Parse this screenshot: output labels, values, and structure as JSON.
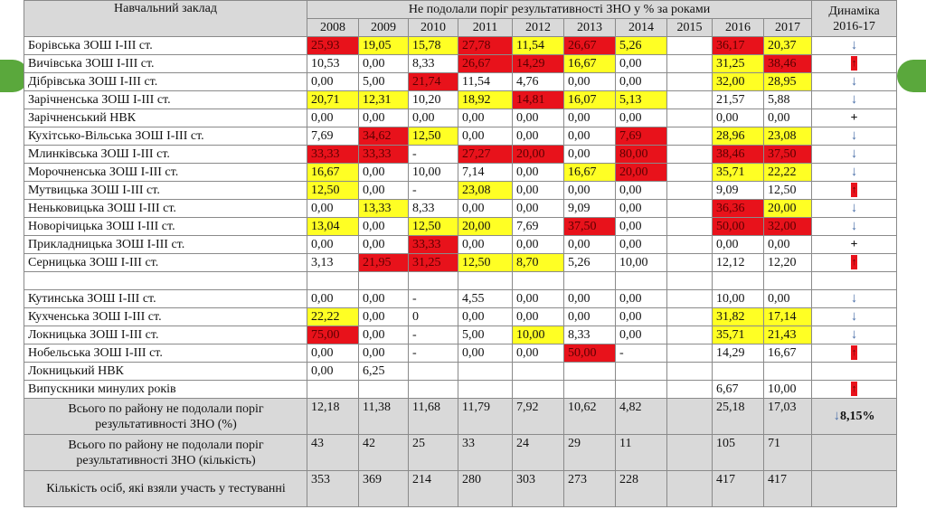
{
  "header": {
    "institution_label": "Навчальний заклад",
    "group_label": "Не подолали поріг результативності ЗНО у % за роками",
    "dynamics_label_1": "Динаміка",
    "dynamics_label_2": "2016-17",
    "years": [
      "2008",
      "2009",
      "2010",
      "2011",
      "2012",
      "2013",
      "2014",
      "2015",
      "2016",
      "2017"
    ]
  },
  "colors": {
    "red": "#e8121b",
    "yellow": "#ffff24",
    "header_gray": "#d9d9d9",
    "accent_green": "#5aa83c"
  },
  "rows": [
    {
      "name": "Борівська ЗОШ І-ІІІ ст.",
      "vals": [
        "25,93",
        "19,05",
        "15,78",
        "27,78",
        "11,54",
        "26,67",
        "5,26",
        "",
        "36,17",
        "20,37"
      ],
      "hl": [
        "r",
        "y",
        "y",
        "r",
        "y",
        "r",
        "y",
        "",
        "r",
        "y"
      ],
      "dyn": "down"
    },
    {
      "name": "Вичівська ЗОШ І-ІІІ ст.",
      "vals": [
        "10,53",
        "0,00",
        "8,33",
        "26,67",
        "14,29",
        "16,67",
        "0,00",
        "",
        "31,25",
        "38,46"
      ],
      "hl": [
        "",
        "",
        "",
        "r",
        "r",
        "y",
        "",
        "",
        "y",
        "r"
      ],
      "dyn": "up"
    },
    {
      "name": "Дібрівська ЗОШ І-ІІІ ст.",
      "vals": [
        "0,00",
        "5,00",
        "21,74",
        "11,54",
        "4,76",
        "0,00",
        "0,00",
        "",
        "32,00",
        "28,95"
      ],
      "hl": [
        "",
        "",
        "r",
        "",
        "",
        "",
        "",
        "",
        "y",
        "y"
      ],
      "dyn": "down"
    },
    {
      "name": "Зарічненська ЗОШ І-ІІІ ст.",
      "vals": [
        "20,71",
        "12,31",
        "10,20",
        "18,92",
        "14,81",
        "16,07",
        "5,13",
        "",
        "21,57",
        "5,88"
      ],
      "hl": [
        "y",
        "y",
        "",
        "y",
        "r",
        "y",
        "y",
        "",
        "",
        ""
      ],
      "dyn": "down"
    },
    {
      "name": "Зарічненський НВК",
      "vals": [
        "0,00",
        "0,00",
        "0,00",
        "0,00",
        "0,00",
        "0,00",
        "0,00",
        "",
        "0,00",
        "0,00"
      ],
      "hl": [
        "",
        "",
        "",
        "",
        "",
        "",
        "",
        "",
        "",
        ""
      ],
      "dyn": "plus"
    },
    {
      "name": "Кухітсько-Вільська  ЗОШ І-ІІІ ст.",
      "vals": [
        "7,69",
        "34,62",
        "12,50",
        "0,00",
        "0,00",
        "0,00",
        "7,69",
        "",
        "28,96",
        "23,08"
      ],
      "hl": [
        "",
        "r",
        "y",
        "",
        "",
        "",
        "r",
        "",
        "y",
        "y"
      ],
      "dyn": "down"
    },
    {
      "name": "Млинківська ЗОШ І-ІІІ ст.",
      "vals": [
        "33,33",
        "33,33",
        "-",
        "27,27",
        "20,00",
        "0,00",
        "80,00",
        "",
        "38,46",
        "37,50"
      ],
      "hl": [
        "r",
        "r",
        "",
        "r",
        "r",
        "",
        "r",
        "",
        "r",
        "r"
      ],
      "dyn": "down"
    },
    {
      "name": "Морочненська ЗОШ І-ІІІ ст.",
      "vals": [
        "16,67",
        "0,00",
        "10,00",
        "7,14",
        "0,00",
        "16,67",
        "20,00",
        "",
        "35,71",
        "22,22"
      ],
      "hl": [
        "y",
        "",
        "",
        "",
        "",
        "y",
        "r",
        "",
        "y",
        "y"
      ],
      "dyn": "down"
    },
    {
      "name": "Мутвицька  ЗОШ І-ІІІ ст.",
      "vals": [
        "12,50",
        "0,00",
        "-",
        "23,08",
        "0,00",
        "0,00",
        "0,00",
        "",
        "9,09",
        "12,50"
      ],
      "hl": [
        "y",
        "",
        "",
        "y",
        "",
        "",
        "",
        "",
        "",
        ""
      ],
      "dyn": "up"
    },
    {
      "name": "Неньковицька ЗОШ І-ІІІ ст.",
      "vals": [
        "0,00",
        "13,33",
        "8,33",
        "0,00",
        "0,00",
        "9,09",
        "0,00",
        "",
        "36,36",
        "20,00"
      ],
      "hl": [
        "",
        "y",
        "",
        "",
        "",
        "",
        "",
        "",
        "r",
        "y"
      ],
      "dyn": "down"
    },
    {
      "name": "Новорічицька ЗОШ І-ІІІ ст.",
      "vals": [
        "13,04",
        "0,00",
        "12,50",
        "20,00",
        "7,69",
        "37,50",
        "0,00",
        "",
        "50,00",
        "32,00"
      ],
      "hl": [
        "y",
        "",
        "y",
        "y",
        "",
        "r",
        "",
        "",
        "r",
        "r"
      ],
      "dyn": "down"
    },
    {
      "name": "Прикладницька  ЗОШ І-ІІІ ст.",
      "vals": [
        "0,00",
        "0,00",
        "33,33",
        "0,00",
        "0,00",
        "0,00",
        "0,00",
        "",
        "0,00",
        "0,00"
      ],
      "hl": [
        "",
        "",
        "r",
        "",
        "",
        "",
        "",
        "",
        "",
        ""
      ],
      "dyn": "plus"
    },
    {
      "name": "Серницька  ЗОШ І-ІІІ ст.",
      "vals": [
        "3,13",
        "21,95",
        "31,25",
        "12,50",
        "8,70",
        "5,26",
        "10,00",
        "",
        "12,12",
        "12,20"
      ],
      "hl": [
        "",
        "r",
        "r",
        "y",
        "y",
        "",
        "",
        "",
        "",
        ""
      ],
      "dyn": "up"
    }
  ],
  "rows2": [
    {
      "name": "Кутинська ЗОШ І-ІІІ ст.",
      "vals": [
        "0,00",
        "0,00",
        "-",
        "4,55",
        "0,00",
        "0,00",
        "0,00",
        "",
        "10,00",
        "0,00"
      ],
      "hl": [
        "",
        "",
        "",
        "",
        "",
        "",
        "",
        "",
        "",
        ""
      ],
      "dyn": "down"
    },
    {
      "name": "Кухченська ЗОШ І-ІІІ ст.",
      "vals": [
        "22,22",
        "0,00",
        "0",
        "0,00",
        "0,00",
        "0,00",
        "0,00",
        "",
        "31,82",
        "17,14"
      ],
      "hl": [
        "y",
        "",
        "",
        "",
        "",
        "",
        "",
        "",
        "y",
        "y"
      ],
      "dyn": "down"
    },
    {
      "name": "Локницька ЗОШ І-ІІІ ст.",
      "vals": [
        "75,00",
        "0,00",
        "-",
        "5,00",
        "10,00",
        "8,33",
        "0,00",
        "",
        "35,71",
        "21,43"
      ],
      "hl": [
        "r",
        "",
        "",
        "",
        "y",
        "",
        "",
        "",
        "y",
        "y"
      ],
      "dyn": "down"
    },
    {
      "name": "Нобельська  ЗОШ І-ІІІ ст.",
      "vals": [
        "0,00",
        "0,00",
        "-",
        "0,00",
        "0,00",
        "50,00",
        "-",
        "",
        "14,29",
        "16,67"
      ],
      "hl": [
        "",
        "",
        "",
        "",
        "",
        "r",
        "",
        "",
        "",
        ""
      ],
      "dyn": "up"
    },
    {
      "name": "Локницький НВК",
      "vals": [
        "0,00",
        "6,25",
        "",
        "",
        "",
        "",
        "",
        "",
        "",
        ""
      ],
      "hl": [
        "",
        "",
        "",
        "",
        "",
        "",
        "",
        "",
        "",
        ""
      ],
      "dyn": ""
    },
    {
      "name": "Випускники минулих років",
      "vals": [
        "",
        "",
        "",
        "",
        "",
        "",
        "",
        "",
        "6,67",
        "10,00"
      ],
      "hl": [
        "",
        "",
        "",
        "",
        "",
        "",
        "",
        "",
        "",
        ""
      ],
      "dyn": "up"
    }
  ],
  "summary": [
    {
      "label": "Всього по району не подолали поріг результативності ЗНО  (%)",
      "vals": [
        "12,18",
        "11,38",
        "11,68",
        "11,79",
        "7,92",
        "10,62",
        "4,82",
        "",
        "25,18",
        "17,03"
      ],
      "dyn_arrow": "↓",
      "dyn": "8,15%"
    },
    {
      "label": "Всього по району не подолали поріг результативності ЗНО  (кількість)",
      "vals": [
        "43",
        "42",
        "25",
        "33",
        "24",
        "29",
        "11",
        "",
        "105",
        "71"
      ],
      "dyn_arrow": "",
      "dyn": ""
    },
    {
      "label": "Кількість осіб, які взяли участь у тестуванні",
      "vals": [
        "353",
        "369",
        "214",
        "280",
        "303",
        "273",
        "228",
        "",
        "417",
        "417"
      ],
      "dyn_arrow": "",
      "dyn": ""
    }
  ],
  "icons": {
    "down": "↓",
    "up": "↑",
    "plus": "+"
  }
}
